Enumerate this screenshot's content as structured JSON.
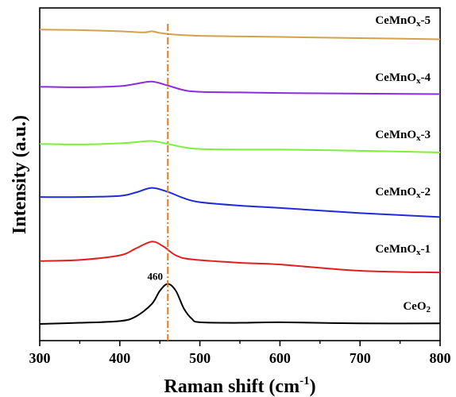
{
  "chart_data": {
    "type": "line",
    "xlabel": "Raman shift (cm",
    "xlabel_sup": "-1",
    "xlabel_end": ")",
    "ylabel": "Intensity (a.u.)",
    "xlim": [
      300,
      800
    ],
    "xticks": [
      300,
      400,
      500,
      600,
      700,
      800
    ],
    "grid": false,
    "reference_line": {
      "x": 460,
      "color": "#E07B1A",
      "style": "dash-dot"
    },
    "annotation": {
      "text": "460",
      "x": 460
    },
    "y_unit_note": "offset, arbitrary units",
    "series": [
      {
        "name": "CeMnOx-5",
        "label_main": "CeMnO",
        "label_sub": "x",
        "label_tail": "-5",
        "color": "#D4A24C",
        "baseline": 5.0,
        "points": [
          [
            300,
            0.15
          ],
          [
            350,
            0.14
          ],
          [
            400,
            0.12
          ],
          [
            430,
            0.1
          ],
          [
            440,
            0.12
          ],
          [
            450,
            0.09
          ],
          [
            470,
            0.06
          ],
          [
            500,
            0.04
          ],
          [
            550,
            0.03
          ],
          [
            600,
            0.02
          ],
          [
            700,
            0.0
          ],
          [
            800,
            -0.02
          ]
        ]
      },
      {
        "name": "CeMnOx-4",
        "label_main": "CeMnO",
        "label_sub": "x",
        "label_tail": "-4",
        "color": "#8B2BE2",
        "baseline": 4.0,
        "points": [
          [
            300,
            0.15
          ],
          [
            350,
            0.14
          ],
          [
            400,
            0.16
          ],
          [
            420,
            0.2
          ],
          [
            440,
            0.24
          ],
          [
            460,
            0.17
          ],
          [
            480,
            0.09
          ],
          [
            500,
            0.06
          ],
          [
            550,
            0.05
          ],
          [
            600,
            0.04
          ],
          [
            700,
            0.03
          ],
          [
            800,
            0.02
          ]
        ]
      },
      {
        "name": "CeMnOx-3",
        "label_main": "CeMnO",
        "label_sub": "x",
        "label_tail": "-3",
        "color": "#7CF03C",
        "baseline": 3.0,
        "points": [
          [
            300,
            0.15
          ],
          [
            350,
            0.14
          ],
          [
            400,
            0.16
          ],
          [
            420,
            0.18
          ],
          [
            440,
            0.2
          ],
          [
            460,
            0.15
          ],
          [
            480,
            0.09
          ],
          [
            500,
            0.06
          ],
          [
            550,
            0.05
          ],
          [
            600,
            0.05
          ],
          [
            700,
            0.03
          ],
          [
            800,
            0.0
          ]
        ]
      },
      {
        "name": "CeMnOx-2",
        "label_main": "CeMnO",
        "label_sub": "x",
        "label_tail": "-2",
        "color": "#1F2BD9",
        "baseline": 2.0,
        "points": [
          [
            300,
            0.22
          ],
          [
            350,
            0.22
          ],
          [
            400,
            0.24
          ],
          [
            420,
            0.3
          ],
          [
            440,
            0.38
          ],
          [
            460,
            0.31
          ],
          [
            480,
            0.2
          ],
          [
            500,
            0.13
          ],
          [
            550,
            0.07
          ],
          [
            600,
            0.03
          ],
          [
            700,
            -0.06
          ],
          [
            800,
            -0.13
          ]
        ]
      },
      {
        "name": "CeMnOx-1",
        "label_main": "CeMnO",
        "label_sub": "x",
        "label_tail": "-1",
        "color": "#E02020",
        "baseline": 1.0,
        "points": [
          [
            300,
            0.1
          ],
          [
            350,
            0.12
          ],
          [
            400,
            0.2
          ],
          [
            420,
            0.32
          ],
          [
            440,
            0.44
          ],
          [
            455,
            0.35
          ],
          [
            470,
            0.2
          ],
          [
            490,
            0.13
          ],
          [
            550,
            0.07
          ],
          [
            600,
            0.04
          ],
          [
            700,
            -0.07
          ],
          [
            800,
            -0.1
          ]
        ]
      },
      {
        "name": "CeO2",
        "label_main": "CeO",
        "label_sub": "2",
        "label_tail": "",
        "color": "#000000",
        "baseline": 0.0,
        "points": [
          [
            300,
            0.0
          ],
          [
            350,
            0.02
          ],
          [
            400,
            0.05
          ],
          [
            420,
            0.13
          ],
          [
            440,
            0.35
          ],
          [
            450,
            0.58
          ],
          [
            460,
            0.7
          ],
          [
            470,
            0.58
          ],
          [
            480,
            0.27
          ],
          [
            490,
            0.09
          ],
          [
            500,
            0.03
          ],
          [
            550,
            0.02
          ],
          [
            600,
            0.03
          ],
          [
            700,
            0.01
          ],
          [
            800,
            0.01
          ]
        ]
      }
    ]
  }
}
